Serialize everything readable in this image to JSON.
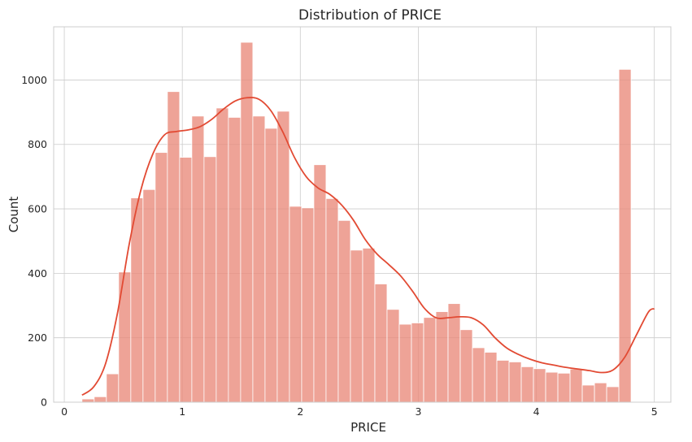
{
  "chart_data": {
    "type": "bar",
    "title": "Distribution of PRICE",
    "xlabel": "PRICE",
    "ylabel": "Count",
    "xlim": [
      -0.09,
      5.14
    ],
    "ylim": [
      0,
      1165
    ],
    "x_ticks": [
      0,
      1,
      2,
      3,
      4,
      5
    ],
    "y_ticks": [
      0,
      200,
      400,
      600,
      800,
      1000
    ],
    "grid": true,
    "bin_width": 0.1034,
    "bin_start": 0.15,
    "bar_color": "#e9897a",
    "kde_color": "#e24a33",
    "counts": [
      10,
      17,
      88,
      404,
      634,
      660,
      775,
      964,
      760,
      888,
      762,
      913,
      884,
      1117,
      888,
      850,
      903,
      608,
      603,
      737,
      632,
      564,
      472,
      478,
      367,
      288,
      242,
      246,
      263,
      281,
      306,
      225,
      169,
      155,
      130,
      125,
      110,
      104,
      93,
      90,
      103,
      53,
      60,
      48,
      1033
    ],
    "kde": {
      "x": [
        0.15,
        0.25,
        0.35,
        0.45,
        0.55,
        0.65,
        0.75,
        0.85,
        0.95,
        1.05,
        1.15,
        1.25,
        1.35,
        1.45,
        1.55,
        1.65,
        1.75,
        1.85,
        1.95,
        2.05,
        2.15,
        2.25,
        2.35,
        2.45,
        2.55,
        2.65,
        2.75,
        2.85,
        2.95,
        3.05,
        3.15,
        3.25,
        3.35,
        3.45,
        3.55,
        3.65,
        3.75,
        3.85,
        3.95,
        4.05,
        4.15,
        4.25,
        4.35,
        4.45,
        4.55,
        4.65,
        4.75,
        4.85,
        4.95,
        5.0
      ],
      "y": [
        22,
        48,
        120,
        275,
        490,
        660,
        770,
        830,
        840,
        845,
        855,
        878,
        910,
        935,
        945,
        940,
        905,
        840,
        760,
        700,
        665,
        645,
        612,
        565,
        505,
        460,
        427,
        392,
        345,
        292,
        262,
        262,
        265,
        262,
        240,
        200,
        168,
        148,
        133,
        122,
        115,
        108,
        103,
        98,
        92,
        100,
        140,
        210,
        280,
        290
      ]
    }
  }
}
